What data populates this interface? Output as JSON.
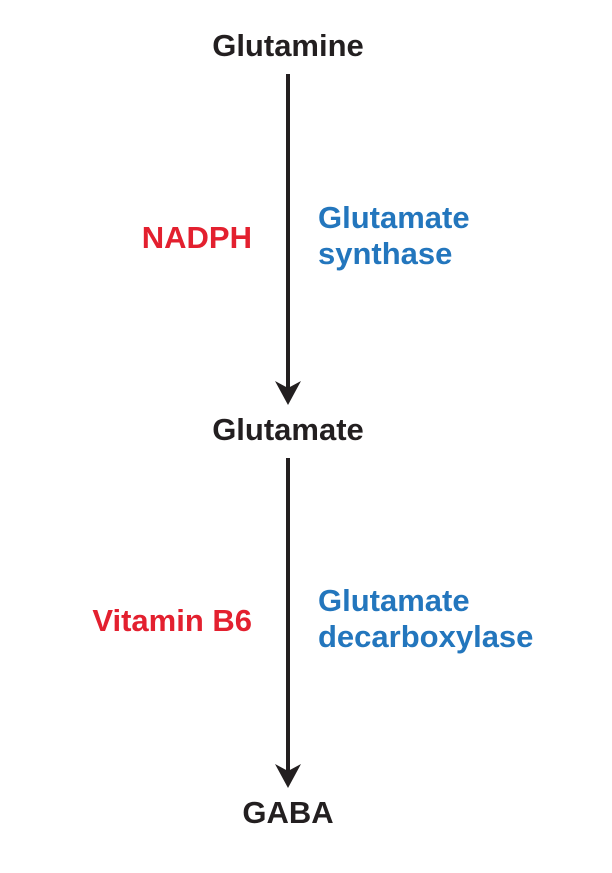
{
  "colors": {
    "metabolite": "#231f20",
    "cofactor": "#e3202f",
    "enzyme": "#2376bd",
    "arrow": "#231f20"
  },
  "metabolites": [
    "Glutamine",
    "Glutamate",
    "GABA"
  ],
  "steps": [
    {
      "from": "Glutamine",
      "to": "Glutamate",
      "cofactor": "NADPH",
      "enzyme_lines": [
        "Glutamate",
        "synthase"
      ]
    },
    {
      "from": "Glutamate",
      "to": "GABA",
      "cofactor": "Vitamin B6",
      "enzyme_lines": [
        "Glutamate",
        "decarboxylase"
      ]
    }
  ]
}
